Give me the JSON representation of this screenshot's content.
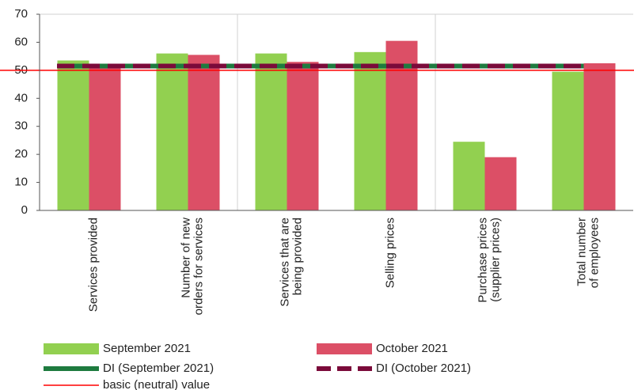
{
  "chart_data": {
    "type": "bar",
    "categories": [
      [
        "Services provided"
      ],
      [
        "Number of new",
        "orders for services"
      ],
      [
        "Services that are",
        "being provided"
      ],
      [
        "Selling prices"
      ],
      [
        "Purchase prices",
        "(supplier prices)"
      ],
      [
        "Total number",
        "of employees"
      ]
    ],
    "series": [
      {
        "name": "September 2021",
        "color": "#92d050",
        "values": [
          53.5,
          56,
          56,
          56.5,
          24.5,
          49.5
        ]
      },
      {
        "name": "October 2021",
        "color": "#dc4f66",
        "values": [
          51,
          55.5,
          53,
          60.5,
          19,
          52.5
        ]
      }
    ],
    "reference_lines": [
      {
        "name": "DI (September 2021)",
        "value": 51.5,
        "color": "#1e7b3f",
        "style": "solid"
      },
      {
        "name": "DI (October 2021)",
        "value": 51.5,
        "color": "#7b0a3a",
        "style": "dashed"
      },
      {
        "name": "basic (neutral) value",
        "value": 50,
        "color": "#ff0000",
        "style": "thin"
      }
    ],
    "ylim": [
      0,
      70
    ],
    "yticks": [
      0,
      10,
      20,
      30,
      40,
      50,
      60,
      70
    ]
  }
}
